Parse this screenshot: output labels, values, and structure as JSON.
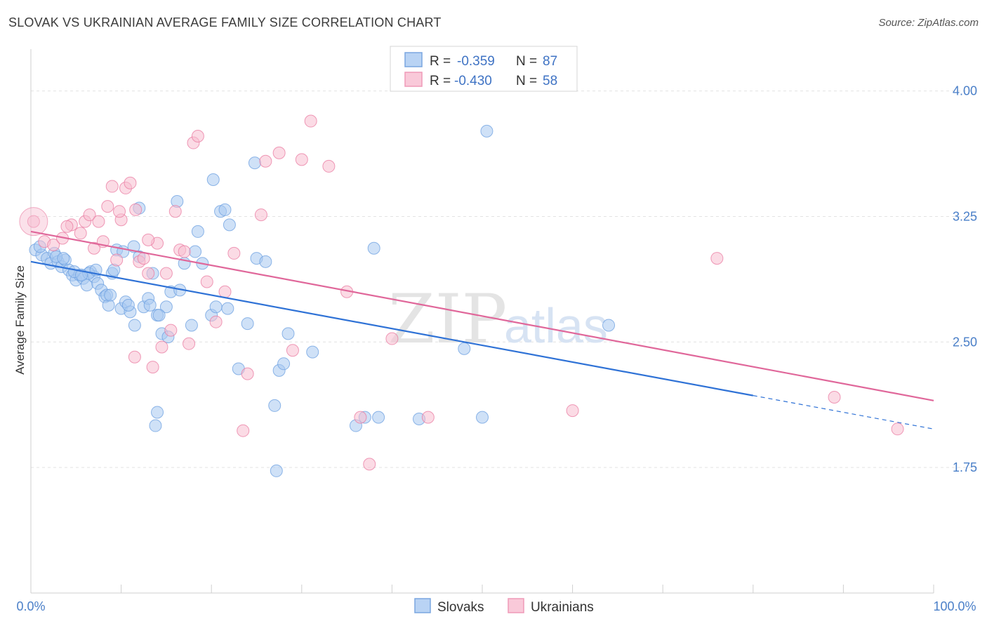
{
  "title": "SLOVAK VS UKRAINIAN AVERAGE FAMILY SIZE CORRELATION CHART",
  "source": "Source: ZipAtlas.com",
  "watermark": {
    "zip": "ZIP",
    "atlas": "atlas"
  },
  "legend": {
    "rows": [
      {
        "r_label": "R =",
        "r_value": "-0.359",
        "n_label": "N =",
        "n_value": "87",
        "color": "#9dc0ef"
      },
      {
        "r_label": "R =",
        "r_value": "-0.430",
        "n_label": "N =",
        "n_value": "58",
        "color": "#f4b0c8"
      }
    ]
  },
  "bottom_legend": [
    {
      "label": "Slovaks",
      "color": "#9dc0ef"
    },
    {
      "label": "Ukrainians",
      "color": "#f4b0c8"
    }
  ],
  "chart_data": {
    "type": "scatter",
    "title": "SLOVAK VS UKRAINIAN AVERAGE FAMILY SIZE CORRELATION CHART",
    "xlabel": "",
    "ylabel": "Average Family Size",
    "xlim": [
      0,
      100
    ],
    "ylim": [
      1.0,
      4.25
    ],
    "x_tick_labels": [
      "0.0%",
      "100.0%"
    ],
    "y_ticks": [
      1.75,
      2.5,
      3.25,
      4.0
    ],
    "y_tick_labels": [
      "1.75",
      "2.50",
      "3.25",
      "4.00"
    ],
    "grid": "horizontal dashed",
    "legend_position": "top-center",
    "series": [
      {
        "name": "Slovaks",
        "color": "#6b9fe0",
        "fill": "#a8c8f0",
        "trend": {
          "x0": 0,
          "y0": 2.98,
          "x1": 80,
          "y1": 2.18,
          "dash_to_x": 100,
          "dash_to_y": 1.98
        },
        "points": [
          [
            0.5,
            3.05
          ],
          [
            1.2,
            3.02
          ],
          [
            1.8,
            3.0
          ],
          [
            2.2,
            2.97
          ],
          [
            2.6,
            3.03
          ],
          [
            3.0,
            2.98
          ],
          [
            3.4,
            2.95
          ],
          [
            3.8,
            2.99
          ],
          [
            4.2,
            2.93
          ],
          [
            4.6,
            2.9
          ],
          [
            5.0,
            2.87
          ],
          [
            5.4,
            2.9
          ],
          [
            5.8,
            2.88
          ],
          [
            6.2,
            2.84
          ],
          [
            6.6,
            2.92
          ],
          [
            7.0,
            2.89
          ],
          [
            7.4,
            2.85
          ],
          [
            7.8,
            2.81
          ],
          [
            8.2,
            2.77
          ],
          [
            8.6,
            2.72
          ],
          [
            9.0,
            2.91
          ],
          [
            9.5,
            3.05
          ],
          [
            10.0,
            2.7
          ],
          [
            10.5,
            2.74
          ],
          [
            11.0,
            2.68
          ],
          [
            11.5,
            2.6
          ],
          [
            12.0,
            3.01
          ],
          [
            12.5,
            2.71
          ],
          [
            13.0,
            2.76
          ],
          [
            13.5,
            2.91
          ],
          [
            14.0,
            2.66
          ],
          [
            14.5,
            2.55
          ],
          [
            15.0,
            2.71
          ],
          [
            15.5,
            2.8
          ],
          [
            16.5,
            2.81
          ],
          [
            17.0,
            2.97
          ],
          [
            17.8,
            2.6
          ],
          [
            18.5,
            3.16
          ],
          [
            19.0,
            2.97
          ],
          [
            20.0,
            2.66
          ],
          [
            20.5,
            2.71
          ],
          [
            21.0,
            3.28
          ],
          [
            22.0,
            3.2
          ],
          [
            23.0,
            2.34
          ],
          [
            24.0,
            2.61
          ],
          [
            25.0,
            3.0
          ],
          [
            26.0,
            2.98
          ],
          [
            27.5,
            2.33
          ],
          [
            28.0,
            2.37
          ],
          [
            28.5,
            2.55
          ],
          [
            1.0,
            3.07
          ],
          [
            2.8,
            3.01
          ],
          [
            3.6,
            3.0
          ],
          [
            4.8,
            2.92
          ],
          [
            6.4,
            2.91
          ],
          [
            7.2,
            2.93
          ],
          [
            8.4,
            2.78
          ],
          [
            9.2,
            2.93
          ],
          [
            10.8,
            2.72
          ],
          [
            13.2,
            2.72
          ],
          [
            14.2,
            2.66
          ],
          [
            15.2,
            2.53
          ],
          [
            16.2,
            3.34
          ],
          [
            18.2,
            3.04
          ],
          [
            20.2,
            3.47
          ],
          [
            21.5,
            3.29
          ],
          [
            24.8,
            3.57
          ],
          [
            27.2,
            1.73
          ],
          [
            31.2,
            2.44
          ],
          [
            36.0,
            2.0
          ],
          [
            38.0,
            3.06
          ],
          [
            38.5,
            2.05
          ],
          [
            43.0,
            2.04
          ],
          [
            48.0,
            2.46
          ],
          [
            50.0,
            2.05
          ],
          [
            50.5,
            3.76
          ],
          [
            64.0,
            2.6
          ],
          [
            37.0,
            2.05
          ],
          [
            27.0,
            2.12
          ],
          [
            14.0,
            2.08
          ],
          [
            12.0,
            3.3
          ],
          [
            10.2,
            3.04
          ],
          [
            11.4,
            3.07
          ],
          [
            13.8,
            2.0
          ],
          [
            21.8,
            2.7
          ],
          [
            5.6,
            2.9
          ],
          [
            8.8,
            2.78
          ]
        ]
      },
      {
        "name": "Ukrainians",
        "color": "#e97aa0",
        "fill": "#f7bdd0",
        "trend": {
          "x0": 0,
          "y0": 3.16,
          "x1": 100,
          "y1": 2.15
        },
        "points": [
          [
            0.3,
            3.22
          ],
          [
            1.5,
            3.1
          ],
          [
            2.5,
            3.08
          ],
          [
            3.5,
            3.12
          ],
          [
            4.5,
            3.2
          ],
          [
            5.5,
            3.15
          ],
          [
            6.0,
            3.22
          ],
          [
            6.5,
            3.26
          ],
          [
            7.0,
            3.06
          ],
          [
            7.5,
            3.22
          ],
          [
            8.0,
            3.1
          ],
          [
            8.5,
            3.31
          ],
          [
            9.0,
            3.43
          ],
          [
            9.5,
            2.99
          ],
          [
            10.0,
            3.23
          ],
          [
            10.5,
            3.42
          ],
          [
            11.0,
            3.45
          ],
          [
            11.5,
            2.41
          ],
          [
            12.0,
            2.98
          ],
          [
            12.5,
            3.0
          ],
          [
            13.0,
            2.91
          ],
          [
            13.5,
            2.35
          ],
          [
            14.0,
            3.09
          ],
          [
            14.5,
            2.47
          ],
          [
            15.0,
            2.91
          ],
          [
            15.5,
            2.57
          ],
          [
            16.0,
            3.28
          ],
          [
            16.5,
            3.05
          ],
          [
            17.0,
            3.04
          ],
          [
            17.5,
            2.49
          ],
          [
            18.0,
            3.69
          ],
          [
            18.5,
            3.73
          ],
          [
            19.5,
            2.86
          ],
          [
            20.5,
            2.62
          ],
          [
            21.5,
            2.8
          ],
          [
            22.5,
            3.03
          ],
          [
            23.5,
            1.97
          ],
          [
            24.0,
            2.31
          ],
          [
            25.5,
            3.26
          ],
          [
            26.0,
            3.58
          ],
          [
            27.5,
            3.63
          ],
          [
            29.0,
            2.45
          ],
          [
            30.0,
            3.59
          ],
          [
            31.0,
            3.82
          ],
          [
            33.0,
            3.55
          ],
          [
            35.0,
            2.8
          ],
          [
            36.5,
            2.05
          ],
          [
            37.5,
            1.77
          ],
          [
            40.0,
            2.52
          ],
          [
            44.0,
            2.05
          ],
          [
            60.0,
            2.09
          ],
          [
            76.0,
            3.0
          ],
          [
            89.0,
            2.17
          ],
          [
            96.0,
            1.98
          ],
          [
            4.0,
            3.19
          ],
          [
            9.8,
            3.28
          ],
          [
            11.6,
            3.29
          ],
          [
            13.0,
            3.11
          ]
        ]
      }
    ]
  }
}
